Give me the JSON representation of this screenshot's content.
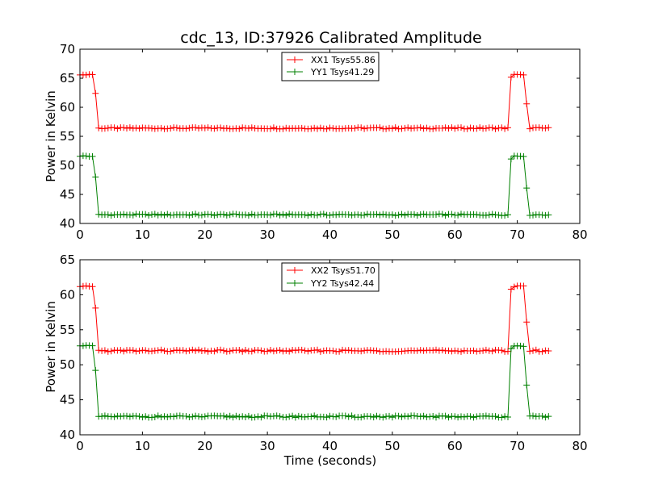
{
  "chart_data": [
    {
      "type": "line",
      "title": "cdc_13, ID:37926 Calibrated Amplitude",
      "xlabel": "",
      "ylabel": "Power in Kelvin",
      "xlim": [
        0,
        80
      ],
      "ylim": [
        40,
        70
      ],
      "xticks": [
        0,
        10,
        20,
        30,
        40,
        50,
        60,
        70,
        80
      ],
      "yticks": [
        40,
        45,
        50,
        55,
        60,
        65,
        70
      ],
      "grid": false,
      "legend": "top-center",
      "marker": "+",
      "series": [
        {
          "name": "XX1 Tsys55.86",
          "color": "#ff0000",
          "profile": {
            "x_start": 0,
            "x_step": 0.5,
            "n": 151,
            "high_level": 65.6,
            "base_level": 56.4,
            "transitions": [
              [
                2.5,
                62.4
              ],
              [
                71.5,
                60.6
              ]
            ],
            "high_ranges": [
              [
                0,
                2.0
              ],
              [
                69.5,
                71.0
              ]
            ],
            "high_edges": [
              [
                69.0,
                65.2
              ]
            ]
          }
        },
        {
          "name": "YY1 Tsys41.29",
          "color": "#008000",
          "profile": {
            "x_start": 0,
            "x_step": 0.5,
            "n": 151,
            "high_level": 51.6,
            "base_level": 41.5,
            "transitions": [
              [
                2.5,
                48.0
              ],
              [
                71.5,
                46.1
              ]
            ],
            "high_ranges": [
              [
                0,
                2.0
              ],
              [
                69.5,
                71.0
              ]
            ],
            "high_edges": [
              [
                69.0,
                51.1
              ]
            ]
          }
        }
      ]
    },
    {
      "type": "line",
      "title": "",
      "xlabel": "Time (seconds)",
      "ylabel": "Power in Kelvin",
      "xlim": [
        0,
        80
      ],
      "ylim": [
        40,
        65
      ],
      "xticks": [
        0,
        10,
        20,
        30,
        40,
        50,
        60,
        70,
        80
      ],
      "yticks": [
        40,
        45,
        50,
        55,
        60,
        65
      ],
      "grid": false,
      "legend": "top-center",
      "marker": "+",
      "series": [
        {
          "name": "XX2 Tsys51.70",
          "color": "#ff0000",
          "profile": {
            "x_start": 0,
            "x_step": 0.5,
            "n": 151,
            "high_level": 61.2,
            "base_level": 52.0,
            "transitions": [
              [
                2.5,
                58.1
              ],
              [
                71.5,
                56.1
              ]
            ],
            "high_ranges": [
              [
                0,
                2.0
              ],
              [
                69.5,
                71.0
              ]
            ],
            "high_edges": [
              [
                69.0,
                60.8
              ]
            ]
          }
        },
        {
          "name": "YY2 Tsys42.44",
          "color": "#008000",
          "profile": {
            "x_start": 0,
            "x_step": 0.5,
            "n": 151,
            "high_level": 52.7,
            "base_level": 42.6,
            "transitions": [
              [
                2.5,
                49.2
              ],
              [
                71.5,
                47.1
              ]
            ],
            "high_ranges": [
              [
                0,
                2.0
              ],
              [
                69.5,
                71.0
              ]
            ],
            "high_edges": [
              [
                69.0,
                52.3
              ]
            ]
          }
        }
      ]
    }
  ]
}
